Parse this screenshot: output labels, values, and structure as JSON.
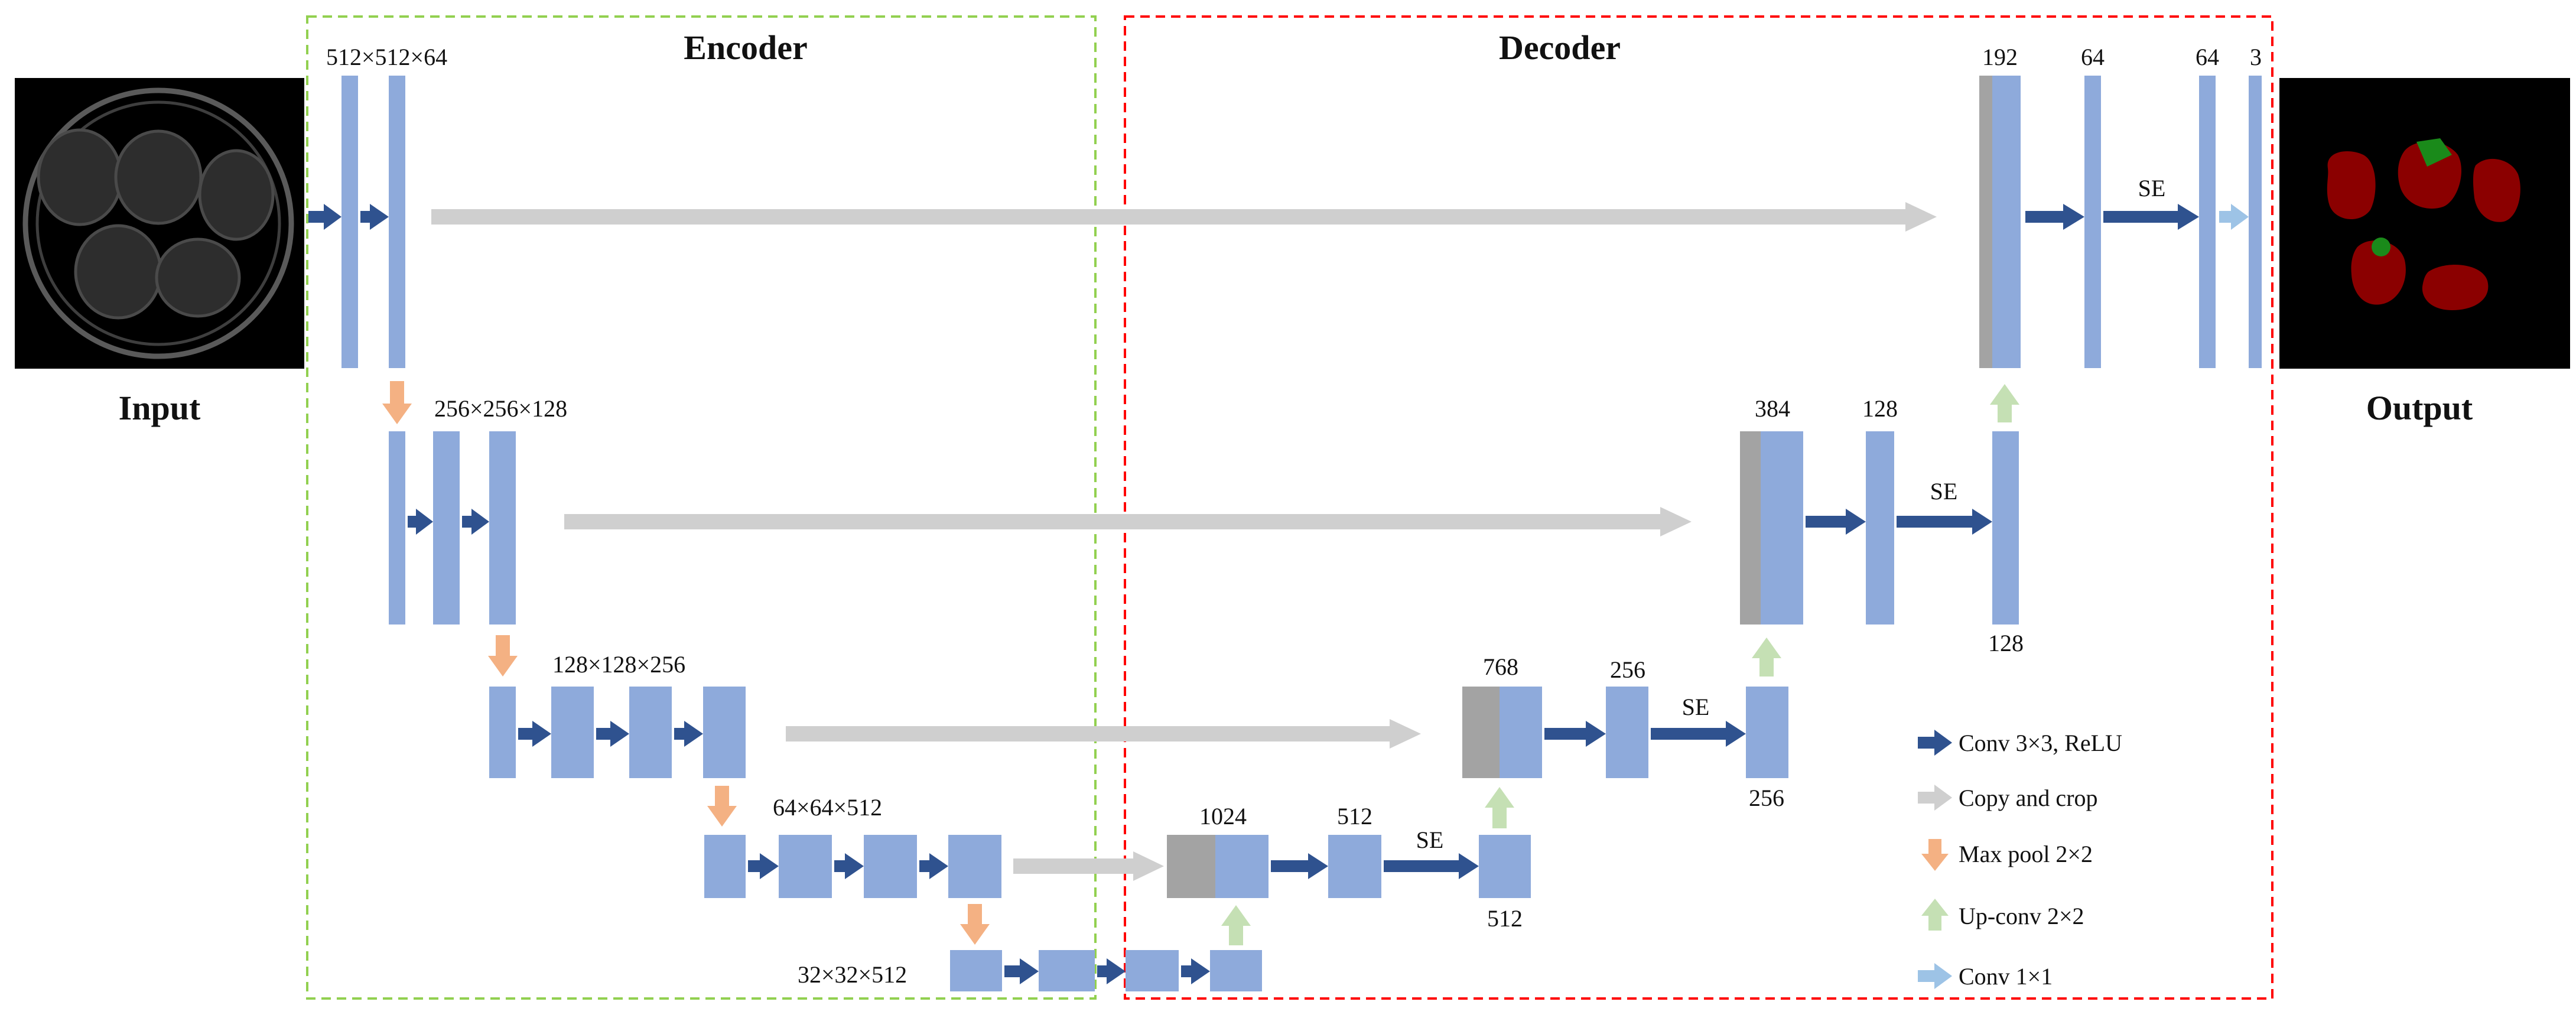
{
  "colors": {
    "block": "#8eaadb",
    "concat": "#a3a3a3",
    "conv": "#2f528f",
    "copy": "#cfcfcf",
    "pool": "#f4b183",
    "upconv": "#c5e0b4",
    "conv1x1": "#9dc3e6",
    "encoder_box": "#92d050",
    "decoder_box": "#ff0000",
    "mask_red": "#8b0000",
    "mask_green": "#1a8a1a"
  },
  "regions": {
    "encoder_title": "Encoder",
    "decoder_title": "Decoder"
  },
  "images": {
    "input_label": "Input",
    "output_label": "Output"
  },
  "encoder": {
    "level1_dims": "512×512×64",
    "level2_dims": "256×256×128",
    "level3_dims": "128×128×256",
    "level4_dims": "64×64×512",
    "bottleneck_dims": "32×32×512"
  },
  "decoder": {
    "d4_concat": "1024",
    "d4_conv": "512",
    "d4_se": "SE",
    "d4_out": "512",
    "d3_concat": "768",
    "d3_conv": "256",
    "d3_se": "SE",
    "d3_out": "256",
    "d2_concat": "384",
    "d2_conv": "128",
    "d2_se": "SE",
    "d2_out": "128",
    "d1_concat": "192",
    "d1_conv": "64",
    "d1_se": "SE",
    "d1_out": "64",
    "final_channels": "3"
  },
  "legend": {
    "conv": "Conv 3×3, ReLU",
    "copy": "Copy and crop",
    "pool": "Max pool 2×2",
    "upconv": "Up-conv 2×2",
    "conv1x1": "Conv 1×1"
  }
}
